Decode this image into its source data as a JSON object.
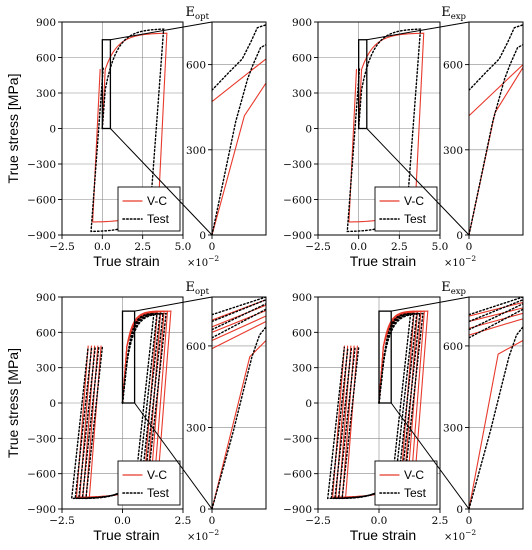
{
  "chart_data": [
    {
      "id": "top-left",
      "type": "line",
      "title": "E",
      "title_subscript": "opt",
      "xlabel": "True strain",
      "ylabel": "True stress [MPa]",
      "x_multiplier": "×10",
      "x_multiplier_exp": "−2",
      "xlim": [
        -2.5,
        5.0
      ],
      "ylim": [
        -900,
        900
      ],
      "xticks": [
        -2.5,
        0.0,
        2.5,
        5.0
      ],
      "xtick_labels": [
        "−2.5",
        "0.0",
        "2.5",
        "5.0"
      ],
      "yticks": [
        -900,
        -600,
        -300,
        0,
        300,
        600,
        900
      ],
      "ytick_labels": [
        "−900",
        "−600",
        "−300",
        "0",
        "300",
        "600",
        "900"
      ],
      "grid": true,
      "legend": {
        "position": "bottom-right",
        "entries": [
          "V-C",
          "Test"
        ]
      },
      "series": [
        {
          "name": "V-C",
          "style": "solid",
          "color": "#e8392b",
          "cycles": 1,
          "x_min": -0.6,
          "x_max": 4.0,
          "y_min": -790,
          "y_max": 805,
          "yield": 500
        },
        {
          "name": "Test",
          "style": "dotted",
          "color": "#000000",
          "cycles": 1,
          "x_min": -0.7,
          "x_max": 3.8,
          "y_min": -870,
          "y_max": 840,
          "yield": 330
        }
      ],
      "zoom_box": {
        "x": [
          0.0,
          0.5
        ],
        "y": [
          0,
          750
        ]
      }
    },
    {
      "id": "top-left-zoom",
      "type": "line",
      "xlim": [
        0.0,
        0.5
      ],
      "ylim": [
        0,
        750
      ],
      "xticks": [
        0.0
      ],
      "xtick_labels": [
        "0"
      ],
      "yticks": [
        0,
        300,
        600
      ],
      "ytick_labels": [
        "0",
        "300",
        "600"
      ],
      "grid": true,
      "series": [
        {
          "name": "V-C",
          "style": "solid",
          "color": "#e8392b",
          "points": [
            [
              0.0,
              0
            ],
            [
              0.3,
              420
            ],
            [
              0.5,
              535
            ]
          ]
        },
        {
          "name": "V-C",
          "style": "solid",
          "color": "#e8392b",
          "points": [
            [
              0.0,
              470
            ],
            [
              0.5,
              620
            ]
          ]
        },
        {
          "name": "Test",
          "style": "dotted",
          "color": "#000000",
          "points": [
            [
              0.0,
              0
            ],
            [
              0.22,
              400
            ],
            [
              0.33,
              550
            ],
            [
              0.38,
              600
            ],
            [
              0.45,
              660
            ],
            [
              0.5,
              670
            ]
          ]
        },
        {
          "name": "Test",
          "style": "dotted",
          "color": "#000000",
          "points": [
            [
              0.0,
              510
            ],
            [
              0.15,
              570
            ],
            [
              0.28,
              620
            ],
            [
              0.36,
              680
            ],
            [
              0.42,
              730
            ],
            [
              0.5,
              740
            ]
          ]
        }
      ]
    },
    {
      "id": "top-right",
      "type": "line",
      "title": "E",
      "title_subscript": "exp",
      "xlabel": "True strain",
      "x_multiplier": "×10",
      "x_multiplier_exp": "−2",
      "xlim": [
        -2.5,
        5.0
      ],
      "ylim": [
        -900,
        900
      ],
      "xticks": [
        -2.5,
        0.0,
        2.5,
        5.0
      ],
      "xtick_labels": [
        "−2.5",
        "0.0",
        "2.5",
        "5.0"
      ],
      "yticks": [
        -900,
        -600,
        -300,
        0,
        300,
        600,
        900
      ],
      "ytick_labels": [
        "−900",
        "−600",
        "−300",
        "0",
        "300",
        "600",
        "900"
      ],
      "grid": true,
      "legend": {
        "position": "bottom-right",
        "entries": [
          "V-C",
          "Test"
        ]
      },
      "series": [
        {
          "name": "V-C",
          "style": "solid",
          "color": "#e8392b",
          "cycles": 1,
          "x_min": -0.6,
          "x_max": 4.0,
          "y_min": -790,
          "y_max": 805,
          "yield": 500
        },
        {
          "name": "Test",
          "style": "dotted",
          "color": "#000000",
          "cycles": 1,
          "x_min": -0.7,
          "x_max": 3.8,
          "y_min": -870,
          "y_max": 840,
          "yield": 330
        }
      ],
      "zoom_box": {
        "x": [
          0.0,
          0.5
        ],
        "y": [
          0,
          750
        ]
      }
    },
    {
      "id": "top-right-zoom",
      "type": "line",
      "xlim": [
        0.0,
        0.5
      ],
      "ylim": [
        0,
        750
      ],
      "xticks": [
        0.0
      ],
      "xtick_labels": [
        "0"
      ],
      "yticks": [
        0,
        300,
        600
      ],
      "ytick_labels": [
        "0",
        "300",
        "600"
      ],
      "grid": true,
      "series": [
        {
          "name": "V-C",
          "style": "solid",
          "color": "#e8392b",
          "points": [
            [
              0.0,
              0
            ],
            [
              0.24,
              430
            ],
            [
              0.5,
              590
            ]
          ]
        },
        {
          "name": "V-C",
          "style": "solid",
          "color": "#e8392b",
          "points": [
            [
              0.0,
              420
            ],
            [
              0.5,
              600
            ]
          ]
        },
        {
          "name": "Test",
          "style": "dotted",
          "color": "#000000",
          "points": [
            [
              0.0,
              0
            ],
            [
              0.22,
              400
            ],
            [
              0.33,
              550
            ],
            [
              0.38,
              600
            ],
            [
              0.45,
              660
            ],
            [
              0.5,
              670
            ]
          ]
        },
        {
          "name": "Test",
          "style": "dotted",
          "color": "#000000",
          "points": [
            [
              0.0,
              510
            ],
            [
              0.15,
              570
            ],
            [
              0.28,
              620
            ],
            [
              0.36,
              680
            ],
            [
              0.42,
              730
            ],
            [
              0.5,
              740
            ]
          ]
        }
      ]
    },
    {
      "id": "bottom-left",
      "type": "line",
      "title": "E",
      "title_subscript": "opt",
      "xlabel": "True strain",
      "ylabel": "True stress [MPa]",
      "x_multiplier": "×10",
      "x_multiplier_exp": "−2",
      "xlim": [
        -2.5,
        2.5
      ],
      "ylim": [
        -900,
        900
      ],
      "xticks": [
        -2.5,
        0.0,
        2.5
      ],
      "xtick_labels": [
        "−2.5",
        "0.0",
        "2.5"
      ],
      "yticks": [
        -900,
        -600,
        -300,
        0,
        300,
        600,
        900
      ],
      "ytick_labels": [
        "−900",
        "−600",
        "−300",
        "0",
        "300",
        "600",
        "900"
      ],
      "grid": true,
      "legend": {
        "position": "bottom-right",
        "entries": [
          "V-C",
          "Test"
        ]
      },
      "series": [
        {
          "name": "V-C",
          "style": "solid",
          "color": "#e8392b",
          "cycles": 5,
          "x_min": -1.9,
          "x_max": 2.0,
          "y_min": -800,
          "y_max": 780,
          "yield": 480
        },
        {
          "name": "Test",
          "style": "dotted",
          "color": "#000000",
          "cycles": 5,
          "x_min": -2.1,
          "x_max": 1.8,
          "y_min": -810,
          "y_max": 760,
          "yield": 340
        }
      ],
      "zoom_box": {
        "x": [
          0.0,
          0.5
        ],
        "y": [
          0,
          780
        ]
      }
    },
    {
      "id": "bottom-left-zoom",
      "type": "line",
      "xlim": [
        0.0,
        0.5
      ],
      "ylim": [
        0,
        780
      ],
      "xticks": [
        0.0
      ],
      "xtick_labels": [
        "0"
      ],
      "yticks": [
        0,
        300,
        600
      ],
      "ytick_labels": [
        "0",
        "300",
        "600"
      ],
      "grid": true,
      "series": [
        {
          "name": "V-C",
          "style": "solid",
          "color": "#e8392b",
          "points": [
            [
              0.0,
              0
            ],
            [
              0.35,
              560
            ],
            [
              0.5,
              620
            ]
          ]
        },
        {
          "name": "V-C",
          "style": "solid",
          "color": "#e8392b",
          "points": [
            [
              0.0,
              590
            ],
            [
              0.5,
              690
            ]
          ]
        },
        {
          "name": "V-C",
          "style": "solid",
          "color": "#e8392b",
          "points": [
            [
              0.0,
              620
            ],
            [
              0.5,
              710
            ]
          ]
        },
        {
          "name": "V-C",
          "style": "solid",
          "color": "#e8392b",
          "points": [
            [
              0.0,
              650
            ],
            [
              0.5,
              730
            ]
          ]
        },
        {
          "name": "V-C",
          "style": "solid",
          "color": "#e8392b",
          "points": [
            [
              0.0,
              670
            ],
            [
              0.5,
              750
            ]
          ]
        },
        {
          "name": "V-C",
          "style": "solid",
          "color": "#e8392b",
          "points": [
            [
              0.0,
              695
            ],
            [
              0.5,
              770
            ]
          ]
        },
        {
          "name": "Test",
          "style": "dotted",
          "color": "#000000",
          "points": [
            [
              0.0,
              0
            ],
            [
              0.2,
              290
            ],
            [
              0.3,
              450
            ],
            [
              0.37,
              560
            ],
            [
              0.44,
              640
            ],
            [
              0.5,
              670
            ]
          ]
        },
        {
          "name": "Test",
          "style": "dotted",
          "color": "#000000",
          "points": [
            [
              0.0,
              630
            ],
            [
              0.5,
              735
            ]
          ]
        },
        {
          "name": "Test",
          "style": "dotted",
          "color": "#000000",
          "points": [
            [
              0.0,
              660
            ],
            [
              0.5,
              755
            ]
          ]
        },
        {
          "name": "Test",
          "style": "dotted",
          "color": "#000000",
          "points": [
            [
              0.0,
              690
            ],
            [
              0.5,
              770
            ]
          ]
        },
        {
          "name": "Test",
          "style": "dotted",
          "color": "#000000",
          "points": [
            [
              0.0,
              715
            ],
            [
              0.5,
              780
            ]
          ]
        }
      ]
    },
    {
      "id": "bottom-right",
      "type": "line",
      "title": "E",
      "title_subscript": "exp",
      "xlabel": "True strain",
      "x_multiplier": "×10",
      "x_multiplier_exp": "−2",
      "xlim": [
        -2.5,
        2.5
      ],
      "ylim": [
        -900,
        900
      ],
      "xticks": [
        -2.5,
        0.0,
        2.5
      ],
      "xtick_labels": [
        "−2.5",
        "0.0",
        "2.5"
      ],
      "yticks": [
        -900,
        -600,
        -300,
        0,
        300,
        600,
        900
      ],
      "ytick_labels": [
        "−900",
        "−600",
        "−300",
        "0",
        "300",
        "600",
        "900"
      ],
      "grid": true,
      "legend": {
        "position": "bottom-right",
        "entries": [
          "V-C",
          "Test"
        ]
      },
      "series": [
        {
          "name": "V-C",
          "style": "solid",
          "color": "#e8392b",
          "cycles": 5,
          "x_min": -1.9,
          "x_max": 2.0,
          "y_min": -800,
          "y_max": 780,
          "yield": 480
        },
        {
          "name": "Test",
          "style": "dotted",
          "color": "#000000",
          "cycles": 5,
          "x_min": -2.1,
          "x_max": 1.8,
          "y_min": -810,
          "y_max": 760,
          "yield": 340
        }
      ],
      "zoom_box": {
        "x": [
          0.0,
          0.5
        ],
        "y": [
          0,
          780
        ]
      }
    },
    {
      "id": "bottom-right-zoom",
      "type": "line",
      "xlim": [
        0.0,
        0.5
      ],
      "ylim": [
        0,
        780
      ],
      "xticks": [
        0.0
      ],
      "xtick_labels": [
        "0"
      ],
      "yticks": [
        0,
        300,
        600
      ],
      "ytick_labels": [
        "0",
        "300",
        "600"
      ],
      "grid": true,
      "series": [
        {
          "name": "V-C",
          "style": "solid",
          "color": "#e8392b",
          "points": [
            [
              0.0,
              0
            ],
            [
              0.27,
              570
            ],
            [
              0.5,
              620
            ]
          ]
        },
        {
          "name": "V-C",
          "style": "solid",
          "color": "#e8392b",
          "points": [
            [
              0.0,
              640
            ],
            [
              0.5,
              700
            ]
          ]
        },
        {
          "name": "V-C",
          "style": "solid",
          "color": "#e8392b",
          "points": [
            [
              0.0,
              665
            ],
            [
              0.5,
              720
            ]
          ]
        },
        {
          "name": "V-C",
          "style": "solid",
          "color": "#e8392b",
          "points": [
            [
              0.0,
              690
            ],
            [
              0.5,
              740
            ]
          ]
        },
        {
          "name": "V-C",
          "style": "solid",
          "color": "#e8392b",
          "points": [
            [
              0.0,
              710
            ],
            [
              0.5,
              760
            ]
          ]
        },
        {
          "name": "Test",
          "style": "dotted",
          "color": "#000000",
          "points": [
            [
              0.0,
              0
            ],
            [
              0.2,
              290
            ],
            [
              0.3,
              450
            ],
            [
              0.37,
              560
            ],
            [
              0.44,
              640
            ],
            [
              0.5,
              670
            ]
          ]
        },
        {
          "name": "Test",
          "style": "dotted",
          "color": "#000000",
          "points": [
            [
              0.0,
              630
            ],
            [
              0.5,
              735
            ]
          ]
        },
        {
          "name": "Test",
          "style": "dotted",
          "color": "#000000",
          "points": [
            [
              0.0,
              660
            ],
            [
              0.5,
              755
            ]
          ]
        },
        {
          "name": "Test",
          "style": "dotted",
          "color": "#000000",
          "points": [
            [
              0.0,
              690
            ],
            [
              0.5,
              770
            ]
          ]
        },
        {
          "name": "Test",
          "style": "dotted",
          "color": "#000000",
          "points": [
            [
              0.0,
              715
            ],
            [
              0.5,
              780
            ]
          ]
        }
      ]
    }
  ]
}
